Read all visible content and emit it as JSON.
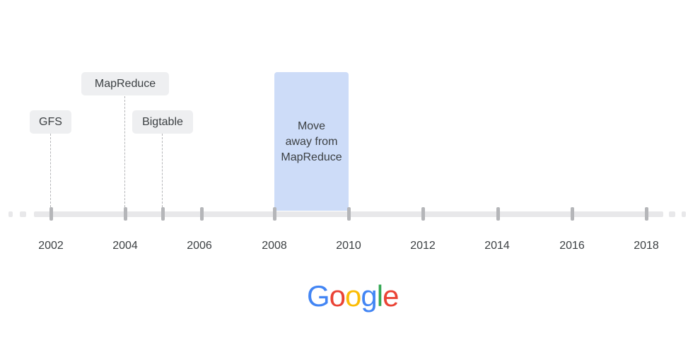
{
  "timeline": {
    "years": [
      "2002",
      "2004",
      "2006",
      "2008",
      "2010",
      "2012",
      "2014",
      "2016",
      "2018"
    ],
    "events": [
      {
        "label": "GFS",
        "year": 2002
      },
      {
        "label": "MapReduce",
        "year": 2004
      },
      {
        "label": "Bigtable",
        "year": 2005
      }
    ],
    "period": {
      "lines": [
        "Move",
        "away from",
        "MapReduce"
      ],
      "start_year": 2008,
      "end_year": 2010
    }
  },
  "logo": {
    "letters": [
      "G",
      "o",
      "o",
      "g",
      "l",
      "e"
    ],
    "colors": [
      "#4285F4",
      "#EA4335",
      "#FBBC05",
      "#4285F4",
      "#34A853",
      "#EA4335"
    ]
  }
}
